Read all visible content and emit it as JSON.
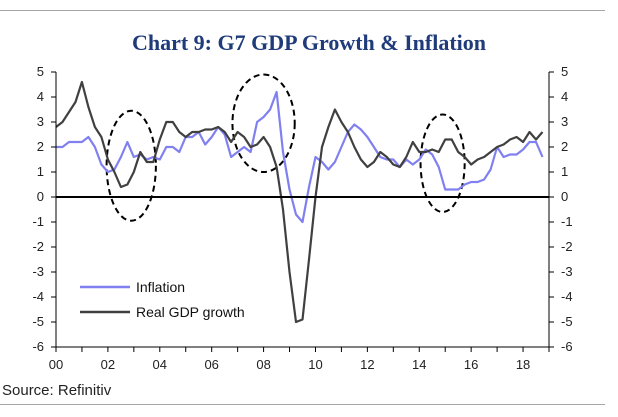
{
  "title": "Chart 9: G7 GDP Growth & Inflation",
  "source": "Source: Refinitiv",
  "colors": {
    "inflation": "#8080f0",
    "gdp": "#404040",
    "title": "#1f3b7a"
  },
  "chart_data": {
    "type": "line",
    "title": "Chart 9: G7 GDP Growth & Inflation",
    "xlabel": "",
    "ylabel": "",
    "xlim": [
      2000,
      2019
    ],
    "ylim": [
      -6,
      5
    ],
    "xticks": [
      2000,
      2002,
      2004,
      2006,
      2008,
      2010,
      2012,
      2014,
      2016,
      2018
    ],
    "xtick_labels": [
      "00",
      "02",
      "04",
      "06",
      "08",
      "10",
      "12",
      "14",
      "16",
      "18"
    ],
    "yticks": [
      -6,
      -5,
      -4,
      -3,
      -2,
      -1,
      0,
      1,
      2,
      3,
      4,
      5
    ],
    "ytick_labels": [
      "-6",
      "-5",
      "-4",
      "-3",
      "-2",
      "-1",
      "0",
      "1",
      "2",
      "3",
      "4",
      "5"
    ],
    "legend_position": "bottom-left",
    "series": [
      {
        "name": "Inflation",
        "color": "#8080f0",
        "x": [
          2000.0,
          2000.25,
          2000.5,
          2000.75,
          2001.0,
          2001.25,
          2001.5,
          2001.75,
          2002.0,
          2002.25,
          2002.5,
          2002.75,
          2003.0,
          2003.25,
          2003.5,
          2003.75,
          2004.0,
          2004.25,
          2004.5,
          2004.75,
          2005.0,
          2005.25,
          2005.5,
          2005.75,
          2006.0,
          2006.25,
          2006.5,
          2006.75,
          2007.0,
          2007.25,
          2007.5,
          2007.75,
          2008.0,
          2008.25,
          2008.5,
          2008.75,
          2009.0,
          2009.25,
          2009.5,
          2009.75,
          2010.0,
          2010.25,
          2010.5,
          2010.75,
          2011.0,
          2011.25,
          2011.5,
          2011.75,
          2012.0,
          2012.25,
          2012.5,
          2012.75,
          2013.0,
          2013.25,
          2013.5,
          2013.75,
          2014.0,
          2014.25,
          2014.5,
          2014.75,
          2015.0,
          2015.25,
          2015.5,
          2015.75,
          2016.0,
          2016.25,
          2016.5,
          2016.75,
          2017.0,
          2017.25,
          2017.5,
          2017.75,
          2018.0,
          2018.25,
          2018.5,
          2018.75
        ],
        "y": [
          2.0,
          2.0,
          2.2,
          2.2,
          2.2,
          2.4,
          2.0,
          1.3,
          1.0,
          1.1,
          1.6,
          2.2,
          1.6,
          1.7,
          1.5,
          1.6,
          1.5,
          2.0,
          2.0,
          1.8,
          2.4,
          2.4,
          2.6,
          2.1,
          2.4,
          2.8,
          2.5,
          1.6,
          1.8,
          2.0,
          1.8,
          3.0,
          3.2,
          3.5,
          4.2,
          1.8,
          0.3,
          -0.7,
          -1.0,
          0.4,
          1.6,
          1.4,
          1.1,
          1.4,
          2.0,
          2.6,
          2.9,
          2.7,
          2.4,
          2.0,
          1.6,
          1.5,
          1.5,
          1.2,
          1.5,
          1.3,
          1.5,
          1.9,
          1.7,
          1.2,
          0.3,
          0.3,
          0.3,
          0.5,
          0.6,
          0.6,
          0.7,
          1.1,
          2.0,
          1.6,
          1.7,
          1.7,
          1.9,
          2.2,
          2.2,
          1.6
        ]
      },
      {
        "name": "Real GDP growth",
        "color": "#404040",
        "x": [
          2000.0,
          2000.25,
          2000.5,
          2000.75,
          2001.0,
          2001.25,
          2001.5,
          2001.75,
          2002.0,
          2002.25,
          2002.5,
          2002.75,
          2003.0,
          2003.25,
          2003.5,
          2003.75,
          2004.0,
          2004.25,
          2004.5,
          2004.75,
          2005.0,
          2005.25,
          2005.5,
          2005.75,
          2006.0,
          2006.25,
          2006.5,
          2006.75,
          2007.0,
          2007.25,
          2007.5,
          2007.75,
          2008.0,
          2008.25,
          2008.5,
          2008.75,
          2009.0,
          2009.25,
          2009.5,
          2009.75,
          2010.0,
          2010.25,
          2010.5,
          2010.75,
          2011.0,
          2011.25,
          2011.5,
          2011.75,
          2012.0,
          2012.25,
          2012.5,
          2012.75,
          2013.0,
          2013.25,
          2013.5,
          2013.75,
          2014.0,
          2014.25,
          2014.5,
          2014.75,
          2015.0,
          2015.25,
          2015.5,
          2015.75,
          2016.0,
          2016.25,
          2016.5,
          2016.75,
          2017.0,
          2017.25,
          2017.5,
          2017.75,
          2018.0,
          2018.25,
          2018.5,
          2018.75
        ],
        "y": [
          2.8,
          3.0,
          3.4,
          3.8,
          4.6,
          3.6,
          2.8,
          2.4,
          1.5,
          1.0,
          0.4,
          0.5,
          1.0,
          1.8,
          1.4,
          1.4,
          2.3,
          3.0,
          3.0,
          2.6,
          2.4,
          2.6,
          2.6,
          2.7,
          2.7,
          2.8,
          2.6,
          2.2,
          2.6,
          2.4,
          2.0,
          2.1,
          2.4,
          2.0,
          1.2,
          -0.5,
          -3.0,
          -5.0,
          -4.9,
          -2.5,
          0.0,
          2.0,
          2.8,
          3.5,
          3.0,
          2.6,
          2.0,
          1.5,
          1.2,
          1.4,
          1.8,
          1.6,
          1.3,
          1.2,
          1.6,
          2.2,
          1.8,
          1.8,
          1.9,
          1.8,
          2.3,
          2.3,
          1.8,
          1.6,
          1.3,
          1.5,
          1.6,
          1.8,
          2.0,
          2.1,
          2.3,
          2.4,
          2.2,
          2.6,
          2.3,
          2.6
        ]
      }
    ],
    "annotations": [
      {
        "type": "dashed-ellipse",
        "cx": 2002.9,
        "cy": 1.25,
        "rx": 0.95,
        "ry": 2.2
      },
      {
        "type": "dashed-ellipse",
        "cx": 2008.0,
        "cy": 2.95,
        "rx": 1.2,
        "ry": 1.95
      },
      {
        "type": "dashed-ellipse",
        "cx": 2014.9,
        "cy": 1.35,
        "rx": 0.85,
        "ry": 1.95
      }
    ]
  }
}
